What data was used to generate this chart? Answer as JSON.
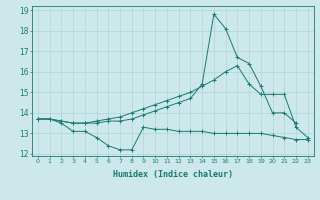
{
  "xlabel": "Humidex (Indice chaleur)",
  "x": [
    0,
    1,
    2,
    3,
    4,
    5,
    6,
    7,
    8,
    9,
    10,
    11,
    12,
    13,
    14,
    15,
    16,
    17,
    18,
    19,
    20,
    21,
    22,
    23
  ],
  "line1": [
    13.7,
    13.7,
    13.5,
    13.1,
    13.1,
    12.8,
    12.4,
    12.2,
    12.2,
    13.3,
    13.2,
    13.2,
    13.1,
    13.1,
    13.1,
    13.0,
    13.0,
    13.0,
    13.0,
    13.0,
    12.9,
    12.8,
    12.7,
    12.7
  ],
  "line2": [
    13.7,
    13.7,
    13.6,
    13.5,
    13.5,
    13.5,
    13.6,
    13.6,
    13.7,
    13.9,
    14.1,
    14.3,
    14.5,
    14.7,
    15.4,
    18.8,
    18.1,
    16.7,
    16.4,
    15.3,
    14.0,
    14.0,
    13.5,
    null
  ],
  "line3": [
    13.7,
    13.7,
    13.6,
    13.5,
    13.5,
    13.6,
    13.7,
    13.8,
    14.0,
    14.2,
    14.4,
    14.6,
    14.8,
    15.0,
    15.3,
    15.6,
    16.0,
    16.3,
    15.4,
    14.9,
    14.9,
    14.9,
    13.3,
    12.8
  ],
  "ylim": [
    11.9,
    19.2
  ],
  "yticks": [
    12,
    13,
    14,
    15,
    16,
    17,
    18,
    19
  ],
  "color": "#1a7a6e",
  "bg_color": "#cce8ea",
  "grid_color": "#b0d4d6"
}
